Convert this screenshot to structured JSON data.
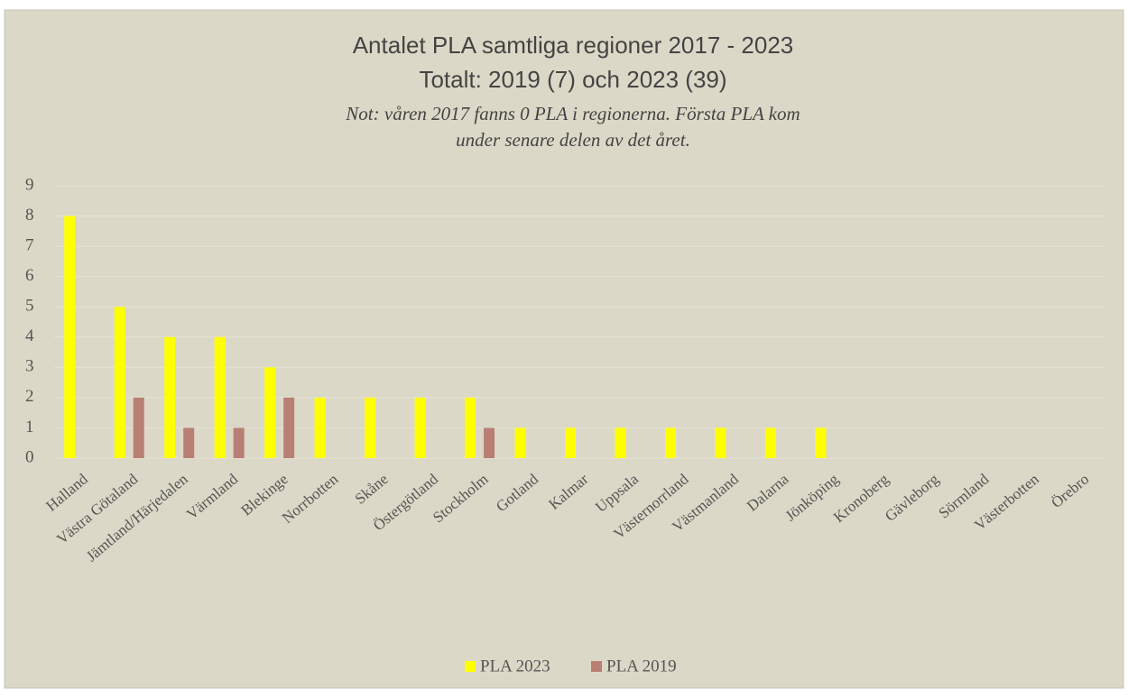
{
  "chart_data": {
    "type": "bar",
    "title": [
      "Antalet PLA samtliga regioner 2017 - 2023",
      "Totalt: 2019 (7) och 2023 (39)"
    ],
    "subtitle": [
      "Not: våren 2017 fanns 0 PLA i regionerna. Första PLA kom",
      "under senare delen av det året."
    ],
    "categories": [
      "Halland",
      "Västra Götaland",
      "Jämtland/Härjedalen",
      "Värmland",
      "Blekinge",
      "Norrbotten",
      "Skåne",
      "Östergötland",
      "Stockholm",
      "Gotland",
      "Kalmar",
      "Uppsala",
      "Västernorrland",
      "Västmanland",
      "Dalarna",
      "Jönköping",
      "Kronoberg",
      "Gävleborg",
      "Sörmland",
      "Västerbotten",
      "Örebro"
    ],
    "series": [
      {
        "name": "PLA 2023",
        "color": "#ffff00",
        "values": [
          8,
          5,
          4,
          4,
          3,
          2,
          2,
          2,
          2,
          1,
          1,
          1,
          1,
          1,
          1,
          1,
          0,
          0,
          0,
          0,
          0
        ]
      },
      {
        "name": "PLA 2019",
        "color": "#b97f74",
        "values": [
          0,
          2,
          1,
          1,
          2,
          0,
          0,
          0,
          1,
          0,
          0,
          0,
          0,
          0,
          0,
          0,
          0,
          0,
          0,
          0,
          0
        ]
      }
    ],
    "ylim": [
      0,
      9
    ],
    "yticks": [
      0,
      1,
      2,
      3,
      4,
      5,
      6,
      7,
      8,
      9
    ],
    "grid": true,
    "legend": "bottom"
  }
}
